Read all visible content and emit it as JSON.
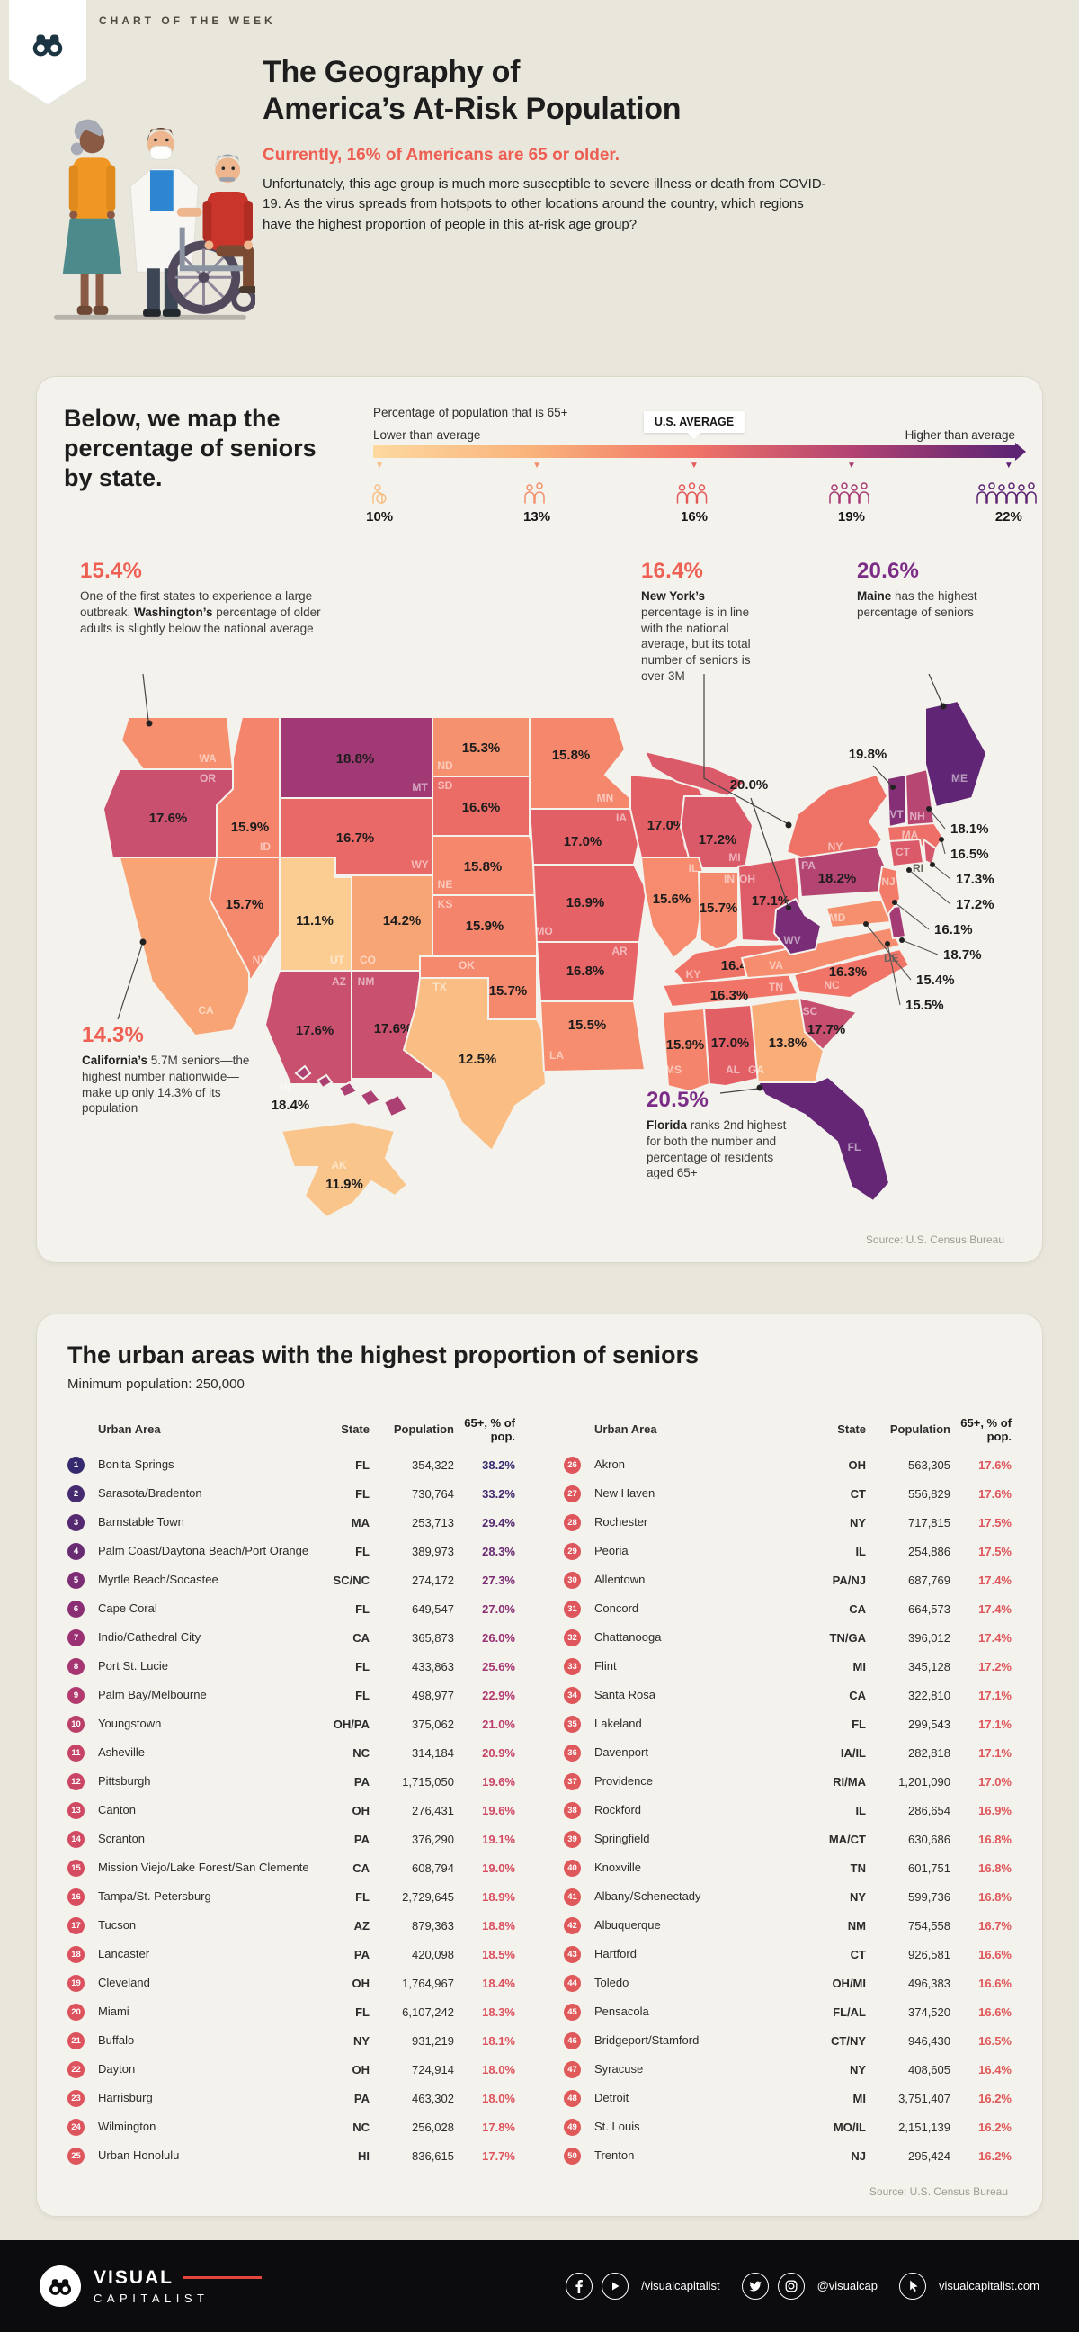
{
  "page": {
    "kicker": "CHART OF THE WEEK"
  },
  "header": {
    "title_l1": "The Geography of",
    "title_l2": "America’s At-Risk Population",
    "subtitle": "Currently, 16% of Americans are 65 or older.",
    "intro": "Unfortunately, this age group is much more susceptible to severe illness or death from COVID-19. As the virus spreads from hotspots to other locations around the country, which regions have the highest proportion of people in this at-risk age group?"
  },
  "map_section": {
    "heading": "Below, we map the percentage of seniors by state.",
    "legend": {
      "title": "Percentage of population that is 65+",
      "left_label": "Lower than average",
      "center_label": "U.S. AVERAGE",
      "right_label": "Higher than average",
      "ticks": [
        "10%",
        "13%",
        "16%",
        "19%",
        "22%"
      ]
    },
    "callouts": {
      "wa": {
        "value": "15.4%",
        "pre": "One of the first states to experience a large outbreak, ",
        "bold": "Washington’s",
        "post": " percentage of older adults is slightly below the national average"
      },
      "ny": {
        "value": "16.4%",
        "pre": "",
        "bold": "New York’s",
        "post": " percentage is in line with the national average, but its total number of seniors is over 3M"
      },
      "me": {
        "value": "20.6%",
        "pre": "",
        "bold": "Maine",
        "post": " has the highest percentage of seniors"
      },
      "ca": {
        "value": "14.3%",
        "pre": "",
        "bold": "California’s",
        "post": " 5.7M seniors—the highest number nationwide—make up only 14.3% of its population"
      },
      "fl": {
        "value": "20.5%",
        "pre": "",
        "bold": "Florida",
        "post": " ranks 2nd highest for both the number and percentage of residents aged 65+"
      }
    },
    "source": "Source: U.S. Census Bureau"
  },
  "table_section": {
    "heading": "The urban areas with the highest proportion of seniors",
    "subheading": "Minimum population: 250,000",
    "columns": [
      "Urban Area",
      "State",
      "Population",
      "65+, % of pop."
    ],
    "source": "Source: U.S. Census Bureau"
  },
  "footer": {
    "brand_top": "VISUAL",
    "brand_bottom": "CAPITALIST",
    "handle_fb_yt": "/visualcapitalist",
    "handle_tw_ig": "@visualcap",
    "website": "visualcapitalist.com"
  },
  "colors": {
    "accent_red": "#ee5e52",
    "accent_purple": "#7b2c86",
    "map_low": "#fdd9a0",
    "map_high": "#5c2473",
    "tick_colors": [
      "#f7bd82",
      "#f2906c",
      "#e25b59",
      "#a73b73",
      "#5c2473"
    ]
  },
  "chart_data": [
    {
      "type": "heatmap",
      "subtype": "us-choropleth",
      "title": "Percentage of population that is 65+ by state",
      "unit": "%",
      "legend_range": [
        10,
        22
      ],
      "us_average": 16,
      "states": [
        [
          "WA",
          15.4
        ],
        [
          "OR",
          17.6
        ],
        [
          "CA",
          14.3
        ],
        [
          "NV",
          15.7
        ],
        [
          "ID",
          15.9
        ],
        [
          "MT",
          18.8
        ],
        [
          "WY",
          16.7
        ],
        [
          "UT",
          11.1
        ],
        [
          "CO",
          14.2
        ],
        [
          "AZ",
          17.6
        ],
        [
          "NM",
          17.6
        ],
        [
          "ND",
          15.3
        ],
        [
          "SD",
          16.6
        ],
        [
          "NE",
          15.8
        ],
        [
          "KS",
          15.9
        ],
        [
          "OK",
          15.7
        ],
        [
          "TX",
          12.5
        ],
        [
          "MN",
          15.8
        ],
        [
          "IA",
          17.0
        ],
        [
          "MO",
          16.9
        ],
        [
          "AR",
          16.8
        ],
        [
          "LA",
          15.5
        ],
        [
          "WI",
          17.0
        ],
        [
          "IL",
          15.6
        ],
        [
          "IN",
          15.7
        ],
        [
          "MI",
          17.2
        ],
        [
          "OH",
          17.1
        ],
        [
          "KY",
          16.4
        ],
        [
          "TN",
          16.3
        ],
        [
          "MS",
          15.9
        ],
        [
          "AL",
          17.0
        ],
        [
          "GA",
          13.8
        ],
        [
          "FL",
          20.5
        ],
        [
          "SC",
          17.7
        ],
        [
          "NC",
          16.3
        ],
        [
          "VA",
          15.5
        ],
        [
          "WV",
          20.0
        ],
        [
          "MD",
          15.4
        ],
        [
          "DE",
          18.7
        ],
        [
          "PA",
          18.2
        ],
        [
          "NJ",
          16.1
        ],
        [
          "NY",
          16.4
        ],
        [
          "CT",
          17.2
        ],
        [
          "RI",
          17.3
        ],
        [
          "MA",
          16.5
        ],
        [
          "VT",
          19.8
        ],
        [
          "NH",
          18.1
        ],
        [
          "ME",
          20.6
        ],
        [
          "AK",
          11.9
        ],
        [
          "HI",
          18.4
        ]
      ]
    },
    {
      "type": "table",
      "title": "The urban areas with the highest proportion of seniors",
      "columns": [
        "Urban Area",
        "State",
        "Population",
        "65+, % of pop."
      ],
      "rows": [
        [
          1,
          "Bonita Springs",
          "FL",
          "354,322",
          "38.2%"
        ],
        [
          2,
          "Sarasota/Bradenton",
          "FL",
          "730,764",
          "33.2%"
        ],
        [
          3,
          "Barnstable Town",
          "MA",
          "253,713",
          "29.4%"
        ],
        [
          4,
          "Palm Coast/Daytona Beach/Port Orange",
          "FL",
          "389,973",
          "28.3%"
        ],
        [
          5,
          "Myrtle Beach/Socastee",
          "SC/NC",
          "274,172",
          "27.3%"
        ],
        [
          6,
          "Cape Coral",
          "FL",
          "649,547",
          "27.0%"
        ],
        [
          7,
          "Indio/Cathedral City",
          "CA",
          "365,873",
          "26.0%"
        ],
        [
          8,
          "Port St. Lucie",
          "FL",
          "433,863",
          "25.6%"
        ],
        [
          9,
          "Palm Bay/Melbourne",
          "FL",
          "498,977",
          "22.9%"
        ],
        [
          10,
          "Youngstown",
          "OH/PA",
          "375,062",
          "21.0%"
        ],
        [
          11,
          "Asheville",
          "NC",
          "314,184",
          "20.9%"
        ],
        [
          12,
          "Pittsburgh",
          "PA",
          "1,715,050",
          "19.6%"
        ],
        [
          13,
          "Canton",
          "OH",
          "276,431",
          "19.6%"
        ],
        [
          14,
          "Scranton",
          "PA",
          "376,290",
          "19.1%"
        ],
        [
          15,
          "Mission Viejo/Lake Forest/San Clemente",
          "CA",
          "608,794",
          "19.0%"
        ],
        [
          16,
          "Tampa/St. Petersburg",
          "FL",
          "2,729,645",
          "18.9%"
        ],
        [
          17,
          "Tucson",
          "AZ",
          "879,363",
          "18.8%"
        ],
        [
          18,
          "Lancaster",
          "PA",
          "420,098",
          "18.5%"
        ],
        [
          19,
          "Cleveland",
          "OH",
          "1,764,967",
          "18.4%"
        ],
        [
          20,
          "Miami",
          "FL",
          "6,107,242",
          "18.3%"
        ],
        [
          21,
          "Buffalo",
          "NY",
          "931,219",
          "18.1%"
        ],
        [
          22,
          "Dayton",
          "OH",
          "724,914",
          "18.0%"
        ],
        [
          23,
          "Harrisburg",
          "PA",
          "463,302",
          "18.0%"
        ],
        [
          24,
          "Wilmington",
          "NC",
          "256,028",
          "17.8%"
        ],
        [
          25,
          "Urban Honolulu",
          "HI",
          "836,615",
          "17.7%"
        ],
        [
          26,
          "Akron",
          "OH",
          "563,305",
          "17.6%"
        ],
        [
          27,
          "New Haven",
          "CT",
          "556,829",
          "17.6%"
        ],
        [
          28,
          "Rochester",
          "NY",
          "717,815",
          "17.5%"
        ],
        [
          29,
          "Peoria",
          "IL",
          "254,886",
          "17.5%"
        ],
        [
          30,
          "Allentown",
          "PA/NJ",
          "687,769",
          "17.4%"
        ],
        [
          31,
          "Concord",
          "CA",
          "664,573",
          "17.4%"
        ],
        [
          32,
          "Chattanooga",
          "TN/GA",
          "396,012",
          "17.4%"
        ],
        [
          33,
          "Flint",
          "MI",
          "345,128",
          "17.2%"
        ],
        [
          34,
          "Santa Rosa",
          "CA",
          "322,810",
          "17.1%"
        ],
        [
          35,
          "Lakeland",
          "FL",
          "299,543",
          "17.1%"
        ],
        [
          36,
          "Davenport",
          "IA/IL",
          "282,818",
          "17.1%"
        ],
        [
          37,
          "Providence",
          "RI/MA",
          "1,201,090",
          "17.0%"
        ],
        [
          38,
          "Rockford",
          "IL",
          "286,654",
          "16.9%"
        ],
        [
          39,
          "Springfield",
          "MA/CT",
          "630,686",
          "16.8%"
        ],
        [
          40,
          "Knoxville",
          "TN",
          "601,751",
          "16.8%"
        ],
        [
          41,
          "Albany/Schenectady",
          "NY",
          "599,736",
          "16.8%"
        ],
        [
          42,
          "Albuquerque",
          "NM",
          "754,558",
          "16.7%"
        ],
        [
          43,
          "Hartford",
          "CT",
          "926,581",
          "16.6%"
        ],
        [
          44,
          "Toledo",
          "OH/MI",
          "496,383",
          "16.6%"
        ],
        [
          45,
          "Pensacola",
          "FL/AL",
          "374,520",
          "16.6%"
        ],
        [
          46,
          "Bridgeport/Stamford",
          "CT/NY",
          "946,430",
          "16.5%"
        ],
        [
          47,
          "Syracuse",
          "NY",
          "408,605",
          "16.4%"
        ],
        [
          48,
          "Detroit",
          "MI",
          "3,751,407",
          "16.2%"
        ],
        [
          49,
          "St. Louis",
          "MO/IL",
          "2,151,139",
          "16.2%"
        ],
        [
          50,
          "Trenton",
          "NJ",
          "295,424",
          "16.2%"
        ]
      ]
    }
  ]
}
